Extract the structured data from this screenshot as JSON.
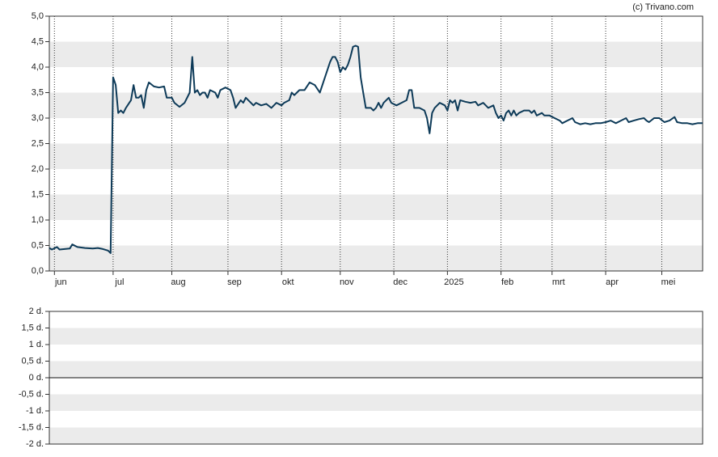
{
  "source": "(c) Trivano.com",
  "chart_data": [
    {
      "type": "line",
      "color": "#0d3a58",
      "bands": true,
      "xgrid": "dotted",
      "xlim": [
        0,
        256
      ],
      "ylim": [
        0,
        5
      ],
      "yticks": [
        {
          "value": 0,
          "label": "0,0"
        },
        {
          "value": 0.5,
          "label": "0,5"
        },
        {
          "value": 1,
          "label": "1,0"
        },
        {
          "value": 1.5,
          "label": "1,5"
        },
        {
          "value": 2,
          "label": "2,0"
        },
        {
          "value": 2.5,
          "label": "2,5"
        },
        {
          "value": 3,
          "label": "3,0"
        },
        {
          "value": 3.5,
          "label": "3,5"
        },
        {
          "value": 4,
          "label": "4,0"
        },
        {
          "value": 4.5,
          "label": "4,5"
        },
        {
          "value": 5,
          "label": "5,0"
        }
      ],
      "xticks": [
        {
          "value": 2,
          "label": "jun"
        },
        {
          "value": 25,
          "label": "jul"
        },
        {
          "value": 48,
          "label": "aug"
        },
        {
          "value": 70,
          "label": "sep"
        },
        {
          "value": 91,
          "label": "okt"
        },
        {
          "value": 114,
          "label": "nov"
        },
        {
          "value": 135,
          "label": "dec"
        },
        {
          "value": 156,
          "label": "2025"
        },
        {
          "value": 177,
          "label": "feb"
        },
        {
          "value": 197,
          "label": "mrt"
        },
        {
          "value": 218,
          "label": "apr"
        },
        {
          "value": 240,
          "label": "mei"
        }
      ],
      "x": [
        0,
        1,
        3,
        4,
        8,
        9,
        11,
        14,
        17,
        19,
        21,
        23,
        24,
        25,
        26,
        27,
        28,
        29,
        30,
        32,
        33,
        34,
        35,
        36,
        37,
        38,
        39,
        41,
        43,
        45,
        46,
        48,
        49,
        51,
        53,
        55,
        56,
        57,
        58,
        59,
        60,
        61,
        62,
        63,
        65,
        66,
        67,
        69,
        71,
        72,
        73,
        75,
        76,
        77,
        79,
        80,
        81,
        83,
        85,
        87,
        89,
        91,
        92,
        94,
        95,
        96,
        98,
        100,
        102,
        104,
        106,
        108,
        110,
        111,
        112,
        113,
        114,
        115,
        116,
        117,
        118,
        119,
        120,
        121,
        122,
        123,
        124,
        126,
        127,
        128,
        129,
        130,
        131,
        133,
        134,
        136,
        138,
        140,
        141,
        142,
        143,
        145,
        147,
        148,
        149,
        150,
        151,
        153,
        155,
        156,
        157,
        158,
        159,
        160,
        161,
        163,
        165,
        167,
        168,
        170,
        172,
        174,
        175,
        176,
        177,
        178,
        179,
        180,
        181,
        182,
        183,
        184,
        186,
        188,
        189,
        190,
        191,
        193,
        194,
        196,
        198,
        200,
        201,
        203,
        205,
        206,
        208,
        210,
        212,
        214,
        216,
        218,
        220,
        222,
        224,
        226,
        227,
        229,
        231,
        233,
        234,
        235,
        237,
        239,
        241,
        243,
        245,
        246,
        248,
        250,
        252,
        254,
        256
      ],
      "values": [
        0.45,
        0.42,
        0.47,
        0.42,
        0.44,
        0.52,
        0.47,
        0.45,
        0.44,
        0.45,
        0.43,
        0.4,
        0.35,
        3.8,
        3.65,
        3.1,
        3.15,
        3.1,
        3.2,
        3.35,
        3.65,
        3.4,
        3.4,
        3.45,
        3.2,
        3.55,
        3.7,
        3.62,
        3.6,
        3.62,
        3.4,
        3.4,
        3.3,
        3.22,
        3.3,
        3.5,
        4.2,
        3.5,
        3.55,
        3.45,
        3.5,
        3.5,
        3.4,
        3.55,
        3.5,
        3.4,
        3.55,
        3.6,
        3.55,
        3.4,
        3.2,
        3.35,
        3.3,
        3.4,
        3.3,
        3.25,
        3.3,
        3.25,
        3.28,
        3.2,
        3.3,
        3.25,
        3.3,
        3.35,
        3.5,
        3.45,
        3.55,
        3.55,
        3.7,
        3.65,
        3.5,
        3.8,
        4.1,
        4.2,
        4.2,
        4.1,
        3.9,
        4.0,
        3.95,
        4.05,
        4.2,
        4.4,
        4.42,
        4.4,
        3.8,
        3.5,
        3.2,
        3.2,
        3.15,
        3.2,
        3.3,
        3.2,
        3.3,
        3.4,
        3.3,
        3.25,
        3.3,
        3.35,
        3.55,
        3.55,
        3.2,
        3.2,
        3.15,
        3.0,
        2.7,
        3.1,
        3.2,
        3.3,
        3.25,
        3.15,
        3.35,
        3.3,
        3.35,
        3.15,
        3.35,
        3.32,
        3.3,
        3.32,
        3.25,
        3.3,
        3.2,
        3.25,
        3.1,
        3.0,
        3.05,
        2.95,
        3.1,
        3.15,
        3.05,
        3.15,
        3.05,
        3.1,
        3.15,
        3.15,
        3.1,
        3.15,
        3.05,
        3.1,
        3.05,
        3.05,
        3.0,
        2.95,
        2.9,
        2.95,
        3.0,
        2.92,
        2.88,
        2.9,
        2.88,
        2.9,
        2.9,
        2.92,
        2.95,
        2.9,
        2.95,
        3.0,
        2.92,
        2.95,
        2.98,
        3.0,
        2.95,
        2.92,
        3.0,
        3.0,
        2.92,
        2.95,
        3.02,
        2.92,
        2.9,
        2.9,
        2.88,
        2.9,
        2.9
      ]
    },
    {
      "type": "bar",
      "bands": true,
      "zero_line": true,
      "ylim": [
        -2,
        2
      ],
      "yticks": [
        {
          "value": -2,
          "label": "-2 d."
        },
        {
          "value": -1.5,
          "label": "-1,5 d."
        },
        {
          "value": -1,
          "label": "-1 d."
        },
        {
          "value": -0.5,
          "label": "-0,5 d."
        },
        {
          "value": 0,
          "label": "0 d."
        },
        {
          "value": 0.5,
          "label": "0,5 d."
        },
        {
          "value": 1,
          "label": "1 d."
        },
        {
          "value": 1.5,
          "label": "1,5 d."
        },
        {
          "value": 2,
          "label": "2 d."
        }
      ]
    }
  ]
}
